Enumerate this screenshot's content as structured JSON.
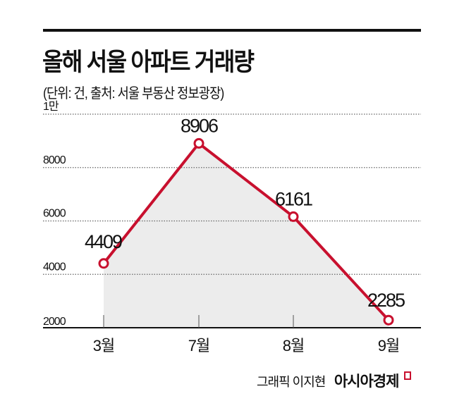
{
  "header": {
    "title": "올해 서울 아파트 거래량",
    "subtitle": "(단위: 건, 출처: 서울 부동산 정보광장)"
  },
  "footer": {
    "credit": "그래픽 이지현",
    "brand": "아시아경제"
  },
  "colors": {
    "line": "#c8102e",
    "area": "#ececec",
    "grid": "#666666"
  },
  "chart_data": {
    "type": "line",
    "title": "올해 서울 아파트 거래량",
    "subtitle": "(단위: 건, 출처: 서울 부동산 정보광장)",
    "categories": [
      "3월",
      "7월",
      "8월",
      "9월"
    ],
    "values": [
      4409,
      8906,
      6161,
      2285
    ],
    "data_labels": [
      "4409",
      "8906",
      "6161",
      "2285"
    ],
    "ylim": [
      2000,
      10000
    ],
    "yticks": [
      2000,
      4000,
      6000,
      8000,
      10000
    ],
    "ytick_labels": [
      "2000",
      "4000",
      "6000",
      "8000",
      "1만"
    ],
    "grid": true,
    "area_fill": true,
    "markers": "hollow-circle"
  }
}
